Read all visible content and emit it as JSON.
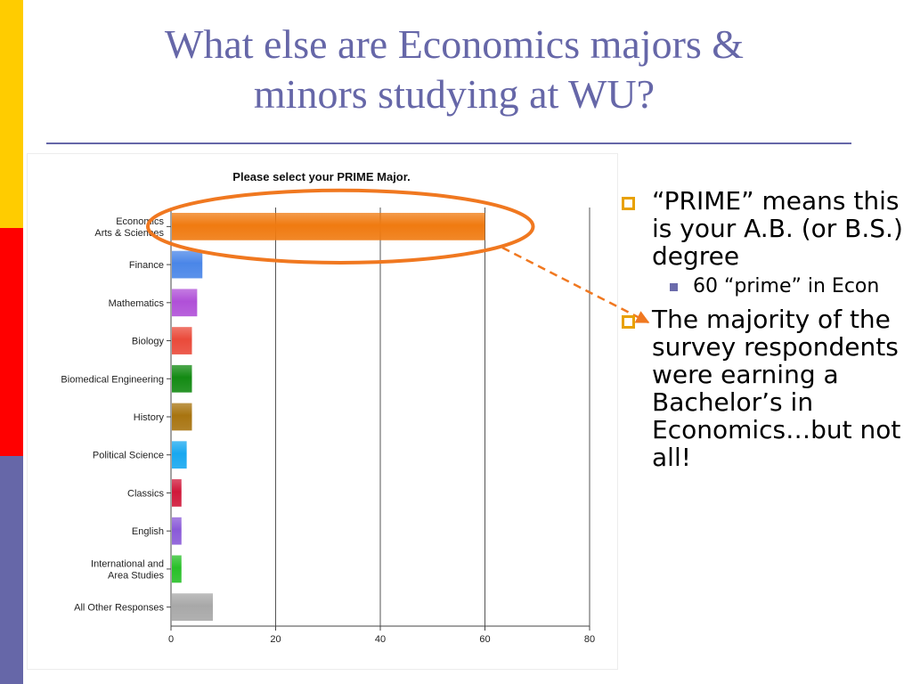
{
  "slide": {
    "title_line1": "What else are Economics majors &",
    "title_line2": "minors studying at WU?"
  },
  "theme": {
    "title_color": "#6667a8",
    "rule_color": "#6667a8",
    "stripe_colors": [
      "#ffcc00",
      "#ff0000",
      "#6667a8"
    ],
    "bullet_marker_color": "#e8a100",
    "highlight_color": "#f07820"
  },
  "bullets": [
    {
      "marker": "hollow-square-icon",
      "text": "“PRIME” means this is your A.B. (or B.S.) degree",
      "sub": [
        {
          "marker": "filled-square-icon",
          "text": "60 “prime” in Econ"
        }
      ]
    },
    {
      "marker": "hollow-square-icon",
      "text": "The majority of the survey respondents were earning a Bachelor’s in Economics…but not all!"
    }
  ],
  "chart_data": {
    "type": "bar",
    "orientation": "horizontal",
    "title": "Please select your PRIME Major.",
    "categories": [
      [
        "Economics",
        "Arts & Sciences"
      ],
      [
        "Finance"
      ],
      [
        "Mathematics"
      ],
      [
        "Biology"
      ],
      [
        "Biomedical Engineering"
      ],
      [
        "History"
      ],
      [
        "Political Science"
      ],
      [
        "Classics"
      ],
      [
        "English"
      ],
      [
        "International and",
        "Area Studies"
      ],
      [
        "All Other Responses"
      ]
    ],
    "values": [
      60,
      6,
      5,
      4,
      4,
      4,
      3,
      2,
      2,
      2,
      8
    ],
    "bar_colors": [
      "#f07a10",
      "#4a86e8",
      "#b050d8",
      "#ea4a3a",
      "#138a13",
      "#a87410",
      "#18a8f0",
      "#d0183a",
      "#8a5ad8",
      "#28c028",
      "#a8a8a8"
    ],
    "xlim": [
      0,
      80
    ],
    "xticks": [
      0,
      20,
      40,
      60,
      80
    ],
    "grid": true,
    "highlight": {
      "category_index": 0,
      "shape": "ellipse"
    }
  }
}
